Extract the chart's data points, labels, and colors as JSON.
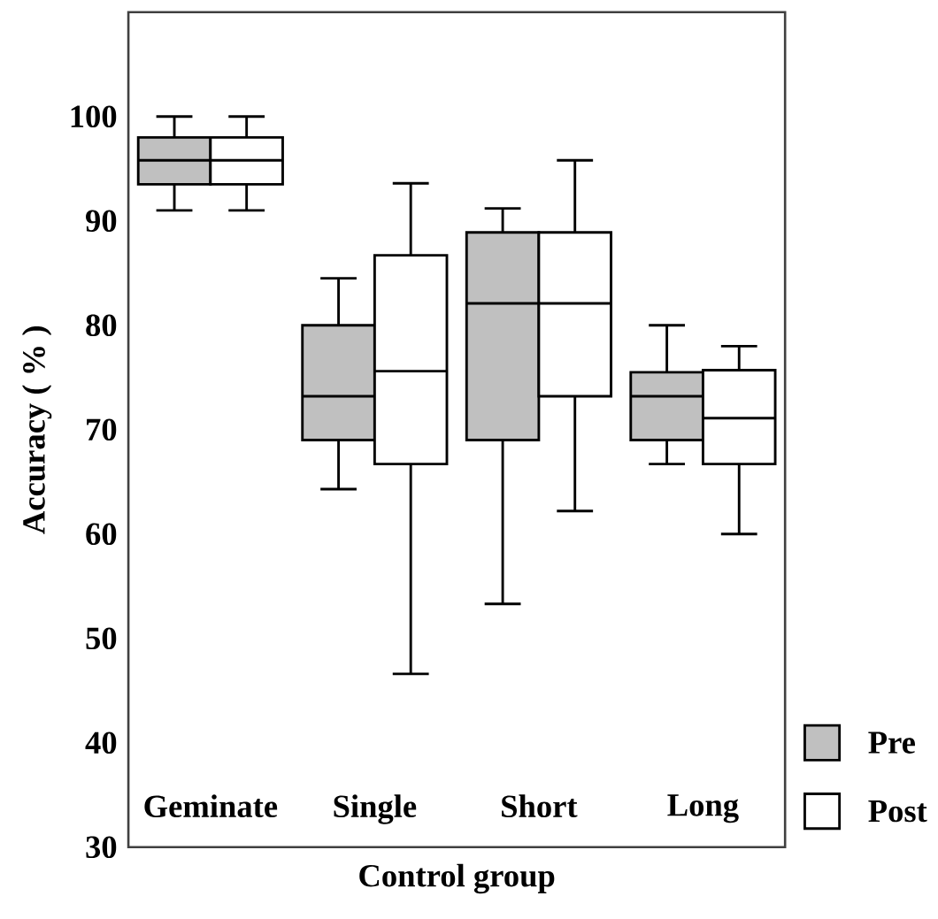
{
  "chart_data": {
    "type": "box",
    "xlabel": "Control group",
    "ylabel": "Accuracy ( % )",
    "categories": [
      "Geminate",
      "Single",
      "Short",
      "Long"
    ],
    "ylim": [
      30,
      110
    ],
    "yticks": [
      30,
      40,
      50,
      60,
      70,
      80,
      90,
      100
    ],
    "legend": "bottom right",
    "series": [
      {
        "name": "Pre",
        "color": "#c0c0c0",
        "boxes": [
          {
            "low": 91,
            "q1": 93.5,
            "median": 95.8,
            "q3": 98,
            "high": 100
          },
          {
            "low": 64.3,
            "q1": 69,
            "median": 73.2,
            "q3": 80,
            "high": 84.5
          },
          {
            "low": 53.3,
            "q1": 69,
            "median": 82.1,
            "q3": 88.9,
            "high": 91.2
          },
          {
            "low": 66.7,
            "q1": 69,
            "median": 73.2,
            "q3": 75.5,
            "high": 80
          }
        ]
      },
      {
        "name": "Post",
        "color": "#ffffff",
        "boxes": [
          {
            "low": 91,
            "q1": 93.5,
            "median": 95.8,
            "q3": 98,
            "high": 100
          },
          {
            "low": 46.6,
            "q1": 66.7,
            "median": 75.6,
            "q3": 86.7,
            "high": 93.6
          },
          {
            "low": 62.2,
            "q1": 73.2,
            "median": 82.1,
            "q3": 88.9,
            "high": 95.8
          },
          {
            "low": 60,
            "q1": 66.7,
            "median": 71.1,
            "q3": 75.7,
            "high": 78
          }
        ]
      }
    ]
  }
}
